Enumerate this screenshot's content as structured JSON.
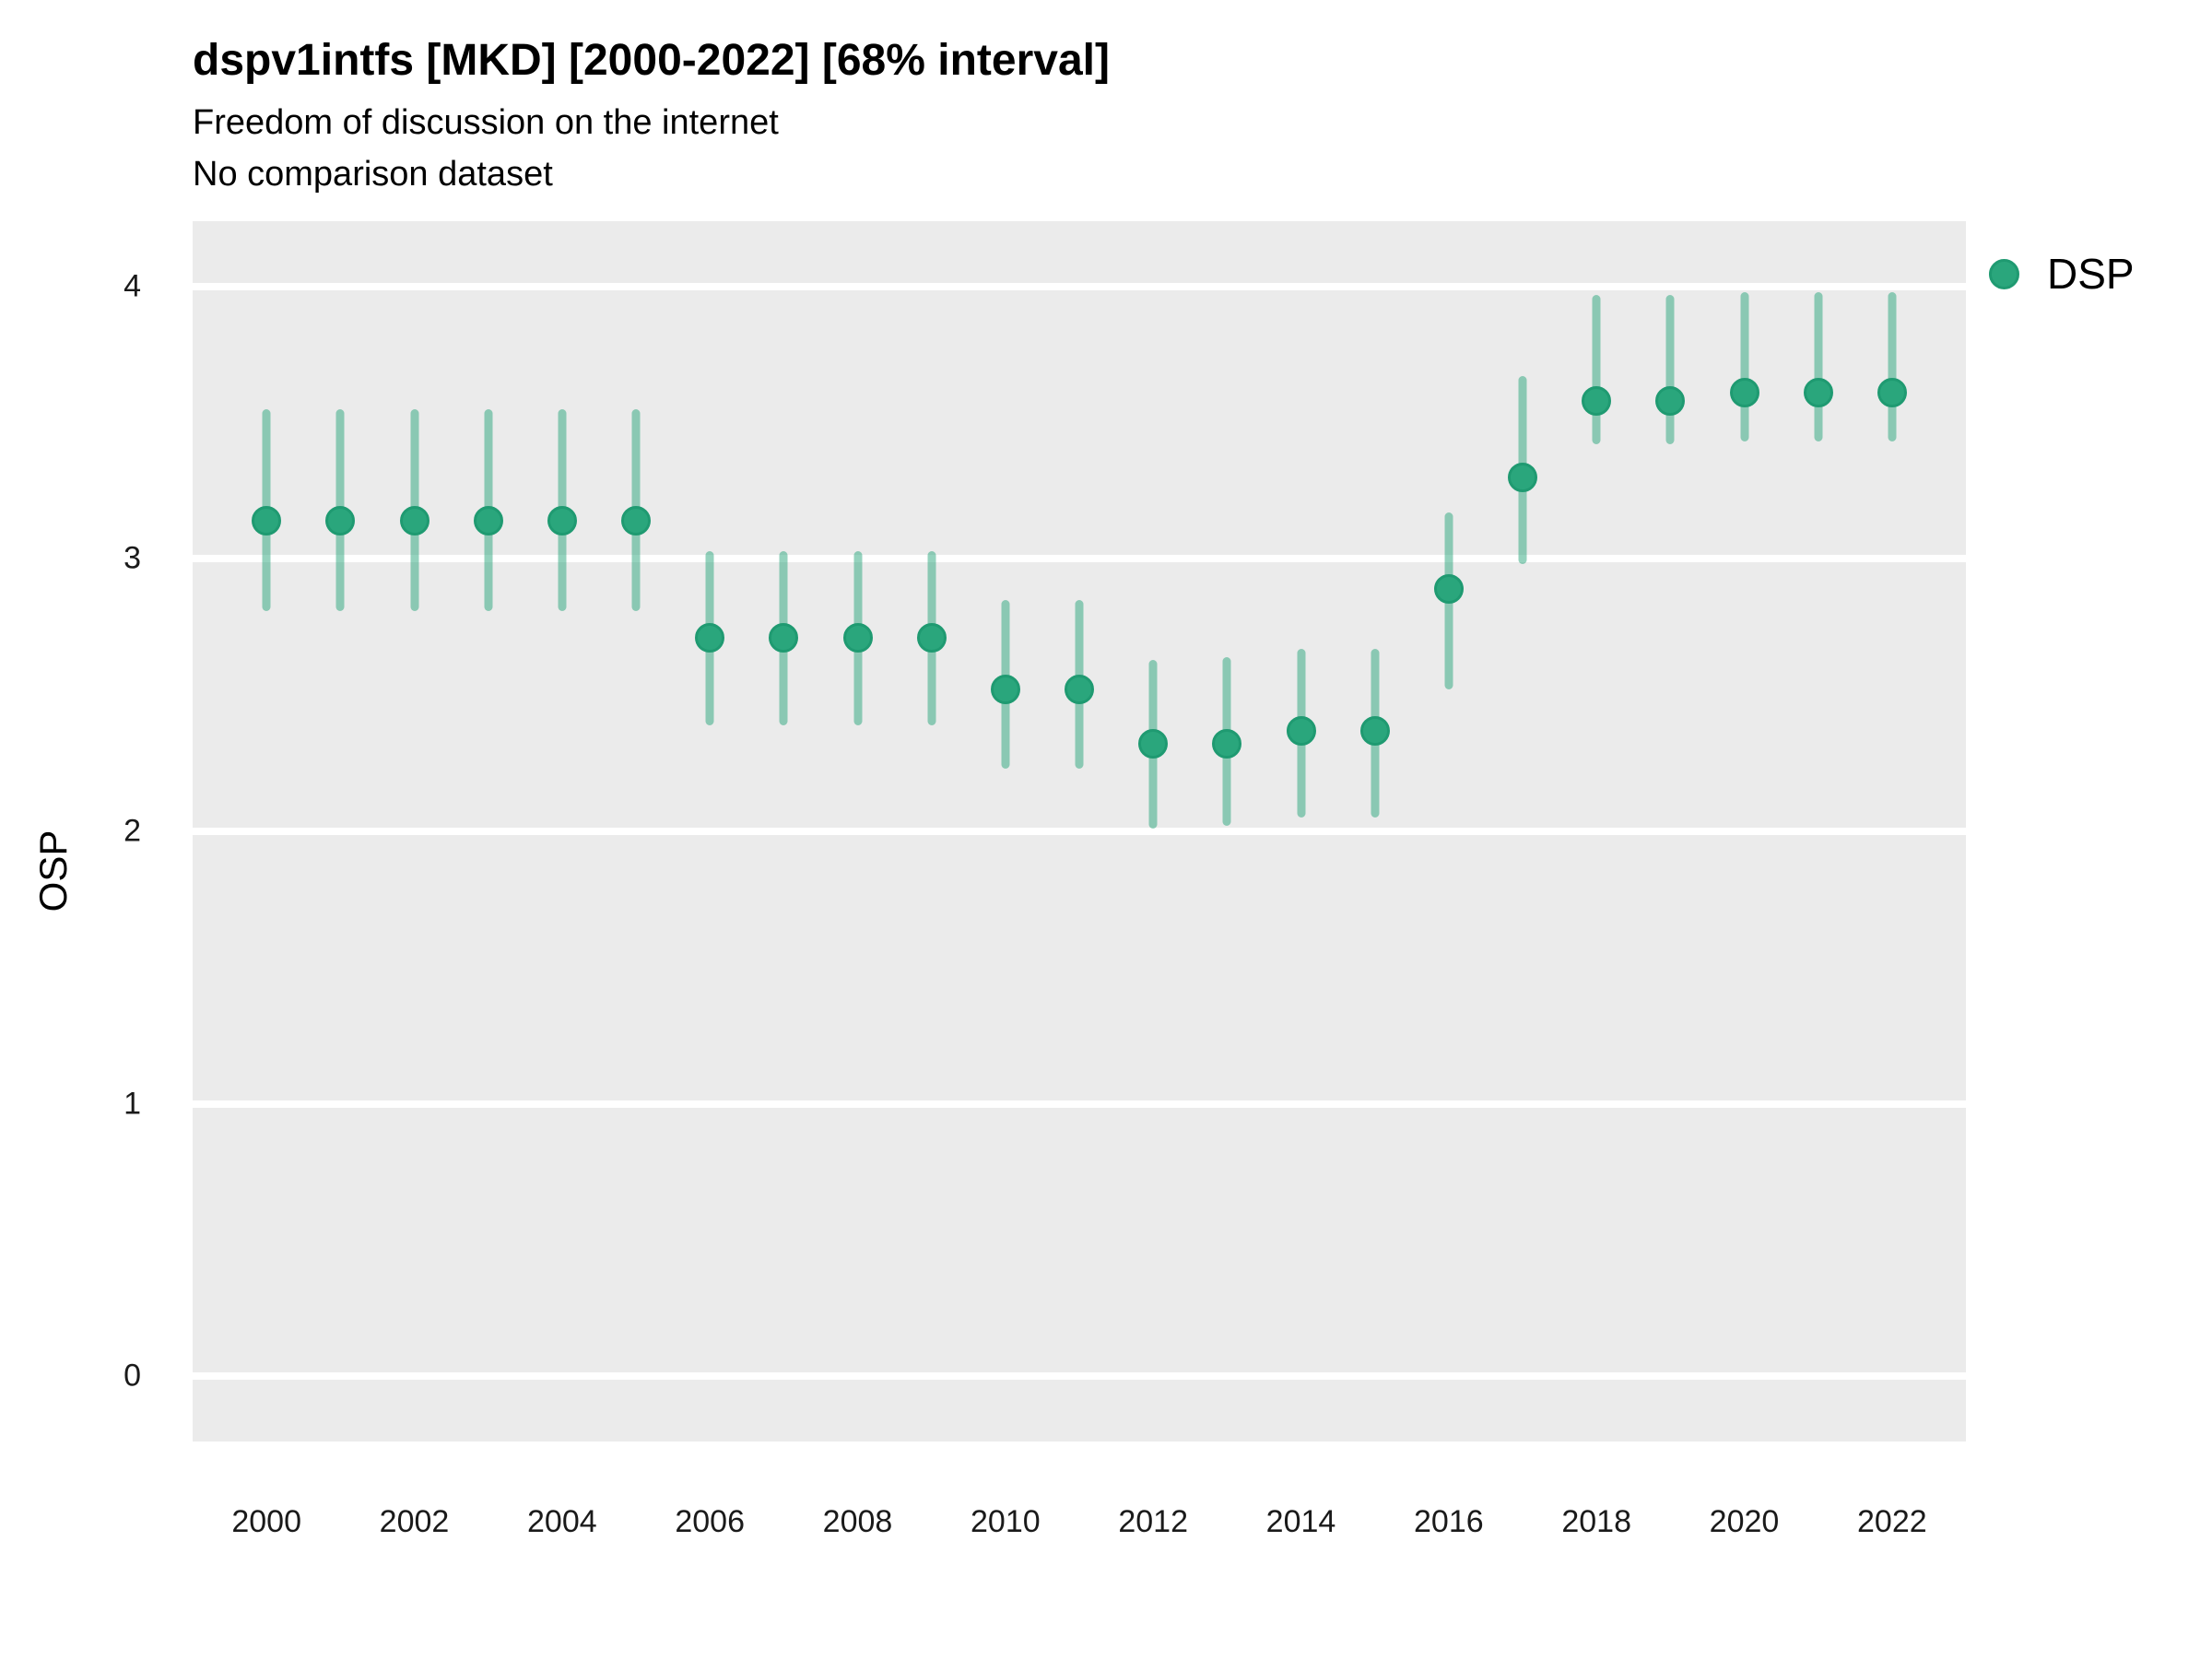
{
  "header": {
    "title": "dspv1intfs [MKD] [2000-2022] [68% interval]",
    "subtitle": "Freedom of discussion on the internet",
    "note": "No comparison dataset"
  },
  "legend": {
    "label": "DSP"
  },
  "axes": {
    "y_label": "OSP",
    "y_ticks": [
      0,
      1,
      2,
      3,
      4
    ],
    "x_ticks": [
      2000,
      2002,
      2004,
      2006,
      2008,
      2010,
      2012,
      2014,
      2016,
      2018,
      2020,
      2022
    ],
    "x_min": 1999,
    "x_max": 2023,
    "y_min": -0.24,
    "y_max": 4.24
  },
  "colors": {
    "panel_background": "#ebebeb",
    "gridline": "#ffffff",
    "point_fill": "#2aa67c",
    "point_stroke": "#1f9a71",
    "interval_bar": "rgba(42,166,124,0.5)",
    "text": "#000000"
  },
  "chart_data": {
    "type": "scatter",
    "title": "dspv1intfs [MKD] [2000-2022] [68% interval]",
    "subtitle": "Freedom of discussion on the internet",
    "note": "No comparison dataset",
    "interval": "68%",
    "xlabel": "",
    "ylabel": "OSP",
    "xlim": [
      1999,
      2023
    ],
    "ylim": [
      -0.24,
      4.24
    ],
    "grid": "on",
    "legend_position": "right",
    "series": [
      {
        "name": "DSP",
        "points": [
          {
            "x": 2000,
            "y": 3.14,
            "lo": 2.81,
            "hi": 3.55
          },
          {
            "x": 2001,
            "y": 3.14,
            "lo": 2.81,
            "hi": 3.55
          },
          {
            "x": 2002,
            "y": 3.14,
            "lo": 2.81,
            "hi": 3.55
          },
          {
            "x": 2003,
            "y": 3.14,
            "lo": 2.81,
            "hi": 3.55
          },
          {
            "x": 2004,
            "y": 3.14,
            "lo": 2.81,
            "hi": 3.55
          },
          {
            "x": 2005,
            "y": 3.14,
            "lo": 2.81,
            "hi": 3.55
          },
          {
            "x": 2006,
            "y": 2.71,
            "lo": 2.39,
            "hi": 3.03
          },
          {
            "x": 2007,
            "y": 2.71,
            "lo": 2.39,
            "hi": 3.03
          },
          {
            "x": 2008,
            "y": 2.71,
            "lo": 2.39,
            "hi": 3.03
          },
          {
            "x": 2009,
            "y": 2.71,
            "lo": 2.39,
            "hi": 3.03
          },
          {
            "x": 2010,
            "y": 2.52,
            "lo": 2.23,
            "hi": 2.85
          },
          {
            "x": 2011,
            "y": 2.52,
            "lo": 2.23,
            "hi": 2.85
          },
          {
            "x": 2012,
            "y": 2.32,
            "lo": 2.01,
            "hi": 2.63
          },
          {
            "x": 2013,
            "y": 2.32,
            "lo": 2.02,
            "hi": 2.64
          },
          {
            "x": 2014,
            "y": 2.37,
            "lo": 2.05,
            "hi": 2.67
          },
          {
            "x": 2015,
            "y": 2.37,
            "lo": 2.05,
            "hi": 2.67
          },
          {
            "x": 2016,
            "y": 2.89,
            "lo": 2.52,
            "hi": 3.17
          },
          {
            "x": 2017,
            "y": 3.3,
            "lo": 2.98,
            "hi": 3.67
          },
          {
            "x": 2018,
            "y": 3.58,
            "lo": 3.42,
            "hi": 3.97
          },
          {
            "x": 2019,
            "y": 3.58,
            "lo": 3.42,
            "hi": 3.97
          },
          {
            "x": 2020,
            "y": 3.61,
            "lo": 3.43,
            "hi": 3.98
          },
          {
            "x": 2021,
            "y": 3.61,
            "lo": 3.43,
            "hi": 3.98
          },
          {
            "x": 2022,
            "y": 3.61,
            "lo": 3.43,
            "hi": 3.98
          }
        ]
      }
    ]
  }
}
